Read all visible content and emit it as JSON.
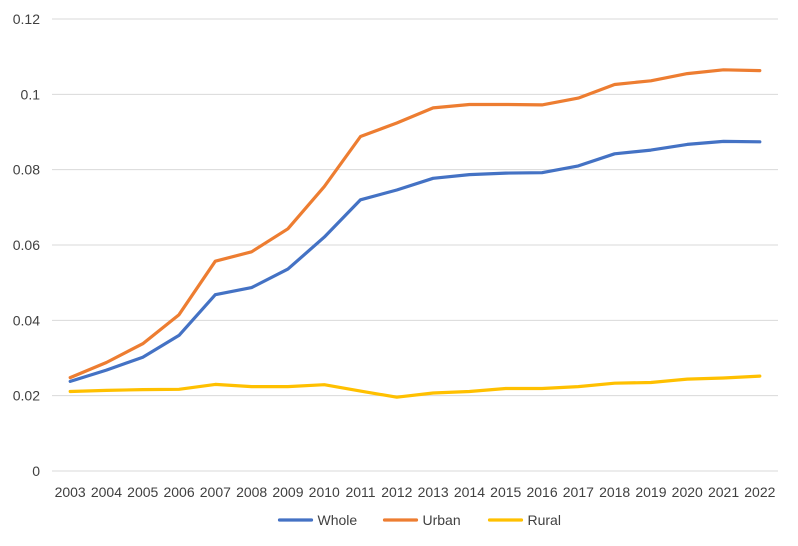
{
  "chart_data": {
    "type": "line",
    "title": "",
    "xlabel": "",
    "ylabel": "",
    "categories": [
      "2003",
      "2004",
      "2005",
      "2006",
      "2007",
      "2008",
      "2009",
      "2010",
      "2011",
      "2012",
      "2013",
      "2014",
      "2015",
      "2016",
      "2017",
      "2018",
      "2019",
      "2020",
      "2021",
      "2022"
    ],
    "ylim": [
      0,
      0.12
    ],
    "yticks": [
      "0",
      "0.02",
      "0.04",
      "0.06",
      "0.08",
      "0.1",
      "0.12"
    ],
    "grid": true,
    "legend_position": "bottom",
    "series": [
      {
        "name": "Whole",
        "color": "#4472C4",
        "values": [
          0.0238,
          0.0268,
          0.0302,
          0.036,
          0.0468,
          0.0487,
          0.0536,
          0.0621,
          0.072,
          0.0746,
          0.0777,
          0.0787,
          0.0791,
          0.0792,
          0.081,
          0.0842,
          0.0852,
          0.0867,
          0.0875,
          0.0874
        ]
      },
      {
        "name": "Urban",
        "color": "#ED7D31",
        "values": [
          0.0248,
          0.0288,
          0.0338,
          0.0415,
          0.0557,
          0.0582,
          0.0643,
          0.0755,
          0.0888,
          0.0924,
          0.0964,
          0.0973,
          0.0973,
          0.0972,
          0.099,
          0.1026,
          0.1036,
          0.1055,
          0.1065,
          0.1063
        ]
      },
      {
        "name": "Rural",
        "color": "#FFC000",
        "values": [
          0.0211,
          0.0214,
          0.0216,
          0.0217,
          0.023,
          0.0224,
          0.0224,
          0.0229,
          0.0212,
          0.0196,
          0.0207,
          0.0211,
          0.0219,
          0.0219,
          0.0224,
          0.0233,
          0.0235,
          0.0244,
          0.0247,
          0.0252
        ]
      }
    ]
  }
}
